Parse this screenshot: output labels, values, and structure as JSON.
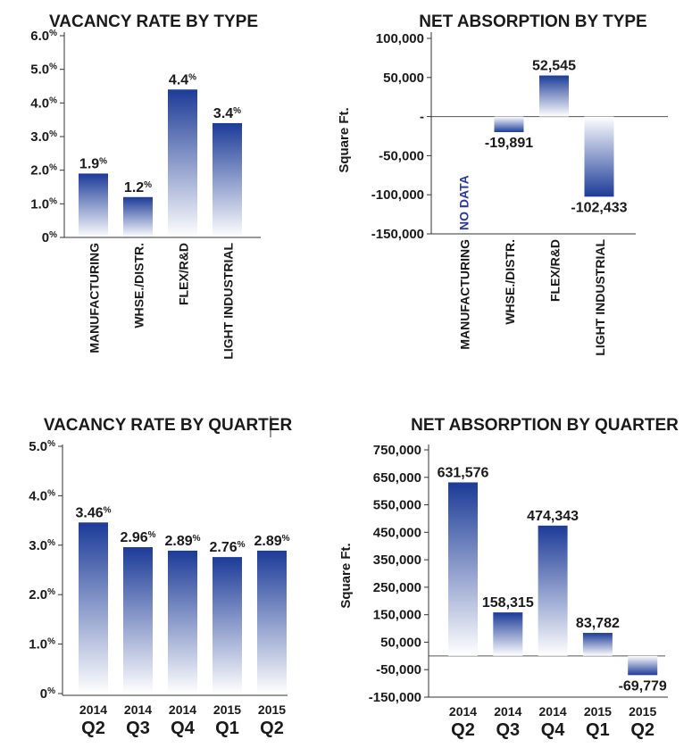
{
  "chart_data": [
    {
      "id": "vacancy-type",
      "type": "bar",
      "title": "VACANCY RATE BY TYPE",
      "categories": [
        "MANUFACTURING",
        "WHSE./DISTR.",
        "FLEX/R&D",
        "LIGHT INDUSTRIAL"
      ],
      "values": [
        1.9,
        1.2,
        4.4,
        3.4
      ],
      "data_labels": [
        "1.9",
        "1.2",
        "4.4",
        "3.4"
      ],
      "label_suffix": "%",
      "ylim": [
        0,
        6
      ],
      "yticks": [
        0,
        1,
        2,
        3,
        4,
        5,
        6
      ],
      "ytick_labels": [
        "0",
        "1.0",
        "2.0",
        "3.0",
        "4.0",
        "5.0",
        "6.0"
      ],
      "ytick_suffix": "%",
      "xlabel": "",
      "ylabel": "",
      "grid": false,
      "bar_color": "#1f3f9c"
    },
    {
      "id": "absorption-type",
      "type": "bar",
      "title": "NET ABSORPTION BY TYPE",
      "categories": [
        "MANUFACTURING",
        "WHSE./DISTR.",
        "FLEX/R&D",
        "LIGHT INDUSTRIAL"
      ],
      "values": [
        null,
        -19891,
        52545,
        -102433
      ],
      "data_labels": [
        "",
        "-19,891",
        "52,545",
        "-102,433"
      ],
      "no_data_label": "NO DATA",
      "ylim": [
        -150000,
        100000
      ],
      "yticks": [
        -150000,
        -100000,
        -50000,
        0,
        50000,
        100000
      ],
      "ytick_labels": [
        "-150,000",
        "-100,000",
        "-50,000",
        "-",
        "50,000",
        "100,000"
      ],
      "xlabel": "",
      "ylabel": "Square Ft.",
      "grid": false,
      "bar_color": "#1f3f9c"
    },
    {
      "id": "vacancy-quarter",
      "type": "bar",
      "title": "VACANCY RATE BY QUARTER",
      "categories": [
        "2014 Q2",
        "2014 Q3",
        "2014 Q4",
        "2015 Q1",
        "2015 Q2"
      ],
      "category_years": [
        "2014",
        "2014",
        "2014",
        "2015",
        "2015"
      ],
      "category_quarters": [
        "Q2",
        "Q3",
        "Q4",
        "Q1",
        "Q2"
      ],
      "values": [
        3.46,
        2.96,
        2.89,
        2.76,
        2.89
      ],
      "data_labels": [
        "3.46",
        "2.96",
        "2.89",
        "2.76",
        "2.89"
      ],
      "label_suffix": "%",
      "ylim": [
        0,
        5
      ],
      "yticks": [
        0,
        1,
        2,
        3,
        4,
        5
      ],
      "ytick_labels": [
        "0",
        "1.0",
        "2.0",
        "3.0",
        "4.0",
        "5.0"
      ],
      "ytick_suffix": "%",
      "xlabel": "",
      "ylabel": "",
      "grid": false,
      "bar_color": "#1f3f9c"
    },
    {
      "id": "absorption-quarter",
      "type": "bar",
      "title": "NET ABSORPTION BY QUARTER",
      "categories": [
        "2014 Q2",
        "2014 Q3",
        "2014 Q4",
        "2015 Q1",
        "2015 Q2"
      ],
      "category_years": [
        "2014",
        "2014",
        "2014",
        "2015",
        "2015"
      ],
      "category_quarters": [
        "Q2",
        "Q3",
        "Q4",
        "Q1",
        "Q2"
      ],
      "values": [
        631576,
        158315,
        474343,
        83782,
        -69779
      ],
      "data_labels": [
        "631,576",
        "158,315",
        "474,343",
        "83,782",
        "-69,779"
      ],
      "ylim": [
        -150000,
        750000
      ],
      "yticks": [
        -150000,
        -50000,
        50000,
        150000,
        250000,
        350000,
        450000,
        550000,
        650000,
        750000
      ],
      "ytick_labels": [
        "-150,000",
        "-50,000",
        "50,000",
        "150,000",
        "250,000",
        "350,000",
        "450,000",
        "550,000",
        "650,000",
        "750,000"
      ],
      "xlabel": "",
      "ylabel": "Square Ft.",
      "grid": false,
      "bar_color": "#1f3f9c"
    }
  ]
}
